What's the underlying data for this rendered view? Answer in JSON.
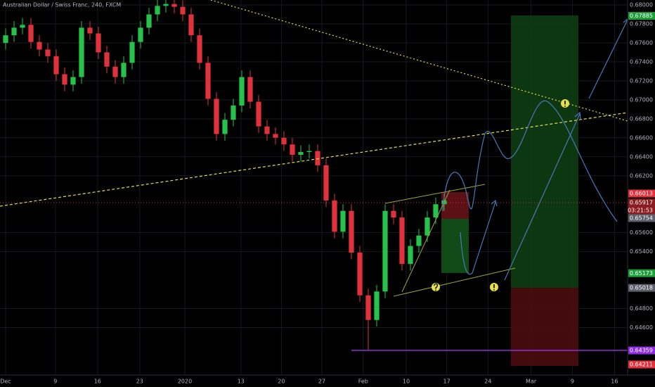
{
  "chart_data": {
    "type": "candlestick",
    "title": "Australian Dollar / Swiss Franc, 240, FXCM",
    "up_color": "#26c24a",
    "down_color": "#e0323c",
    "x": [
      0,
      1,
      2,
      3,
      4,
      5,
      6,
      7,
      8,
      9,
      10,
      11,
      12,
      13,
      14,
      15,
      16,
      17,
      18,
      19,
      20,
      21,
      22,
      23,
      24,
      25,
      26,
      27,
      28,
      29,
      30,
      31,
      32,
      33,
      34,
      35,
      36,
      37,
      38,
      39,
      40,
      41,
      42,
      43,
      44,
      45,
      46,
      47,
      48,
      49,
      50,
      51,
      52
    ],
    "open": [
      0.676,
      0.6768,
      0.6776,
      0.6779,
      0.6761,
      0.6753,
      0.6746,
      0.6727,
      0.6716,
      0.6724,
      0.6776,
      0.677,
      0.675,
      0.6735,
      0.6724,
      0.6739,
      0.6761,
      0.6776,
      0.679,
      0.6799,
      0.6801,
      0.6798,
      0.679,
      0.6768,
      0.6739,
      0.6701,
      0.6664,
      0.6679,
      0.6694,
      0.6724,
      0.6698,
      0.6672,
      0.6664,
      0.666,
      0.6653,
      0.6642,
      0.6645,
      0.6646,
      0.6631,
      0.6594,
      0.6561,
      0.6583,
      0.6539,
      0.6494,
      0.6468,
      0.6498,
      0.6583,
      0.6576,
      0.6527,
      0.6546,
      0.6557,
      0.6576,
      0.659
    ],
    "high": [
      0.6775,
      0.6783,
      0.6786,
      0.6786,
      0.6768,
      0.676,
      0.6753,
      0.6734,
      0.6731,
      0.6783,
      0.6783,
      0.6777,
      0.6757,
      0.6742,
      0.6746,
      0.6768,
      0.6783,
      0.6797,
      0.6806,
      0.6808,
      0.6808,
      0.6805,
      0.6797,
      0.6775,
      0.6746,
      0.6708,
      0.6686,
      0.6701,
      0.6731,
      0.6731,
      0.6705,
      0.6679,
      0.6671,
      0.6667,
      0.666,
      0.6652,
      0.6653,
      0.6653,
      0.6638,
      0.6601,
      0.659,
      0.659,
      0.6546,
      0.6501,
      0.6505,
      0.659,
      0.659,
      0.6583,
      0.6553,
      0.6564,
      0.6583,
      0.6597,
      0.6601
    ],
    "low": [
      0.6753,
      0.6761,
      0.6769,
      0.6754,
      0.6746,
      0.6739,
      0.672,
      0.6709,
      0.6709,
      0.6717,
      0.6763,
      0.6743,
      0.6728,
      0.6717,
      0.6717,
      0.6732,
      0.6754,
      0.6769,
      0.6783,
      0.6792,
      0.6791,
      0.6783,
      0.6761,
      0.6732,
      0.6694,
      0.6657,
      0.6657,
      0.6672,
      0.6687,
      0.6691,
      0.6665,
      0.6657,
      0.6653,
      0.6646,
      0.6635,
      0.6635,
      0.6638,
      0.6624,
      0.6587,
      0.6554,
      0.6554,
      0.6532,
      0.6487,
      0.6436,
      0.6461,
      0.6491,
      0.6569,
      0.652,
      0.652,
      0.6539,
      0.655,
      0.6569,
      0.6583
    ],
    "close": [
      0.6768,
      0.6776,
      0.6779,
      0.6761,
      0.6753,
      0.6746,
      0.6727,
      0.6716,
      0.6724,
      0.6776,
      0.677,
      0.675,
      0.6735,
      0.6724,
      0.6739,
      0.6761,
      0.6776,
      0.679,
      0.6799,
      0.6801,
      0.6798,
      0.679,
      0.6768,
      0.6739,
      0.6701,
      0.6664,
      0.6679,
      0.6694,
      0.6724,
      0.6698,
      0.6672,
      0.6664,
      0.666,
      0.6653,
      0.6642,
      0.6645,
      0.6646,
      0.6631,
      0.6594,
      0.6561,
      0.6583,
      0.6539,
      0.6494,
      0.6468,
      0.6498,
      0.6583,
      0.6576,
      0.6527,
      0.6546,
      0.6557,
      0.6576,
      0.659,
      0.6594
    ],
    "xlim": [
      -0.6667,
      73.75
    ],
    "xticks": [
      {
        "value": 0,
        "label": "Dec"
      },
      {
        "value": 5.9,
        "label": "9"
      },
      {
        "value": 10.9,
        "label": "16"
      },
      {
        "value": 15.9,
        "label": "23"
      },
      {
        "value": 21.25,
        "label": "2020"
      },
      {
        "value": 27.9,
        "label": "13"
      },
      {
        "value": 32.7,
        "label": "20"
      },
      {
        "value": 37.5,
        "label": "27"
      },
      {
        "value": 42.4,
        "label": "Feb"
      },
      {
        "value": 47.5,
        "label": "10"
      },
      {
        "value": 52.3,
        "label": "17"
      },
      {
        "value": 57.2,
        "label": "24"
      },
      {
        "value": 62.3,
        "label": "Mar"
      },
      {
        "value": 67.2,
        "label": "9"
      },
      {
        "value": 72.2,
        "label": "16"
      }
    ],
    "ylim": [
      0.6407,
      0.68052
    ],
    "yticks": [
      {
        "value": 0.68,
        "label": "0.68000"
      },
      {
        "value": 0.678,
        "label": "0.67800"
      },
      {
        "value": 0.676,
        "label": "0.67600"
      },
      {
        "value": 0.674,
        "label": "0.67400"
      },
      {
        "value": 0.672,
        "label": "0.67200"
      },
      {
        "value": 0.67,
        "label": "0.67000"
      },
      {
        "value": 0.668,
        "label": "0.66800"
      },
      {
        "value": 0.666,
        "label": "0.66600"
      },
      {
        "value": 0.664,
        "label": "0.66400"
      },
      {
        "value": 0.662,
        "label": "0.66200"
      },
      {
        "value": 0.656,
        "label": "0.65600"
      },
      {
        "value": 0.654,
        "label": "0.65400"
      },
      {
        "value": 0.648,
        "label": "0.64800"
      },
      {
        "value": 0.646,
        "label": "0.64600"
      }
    ],
    "grid": true,
    "price_tags": [
      {
        "value": 0.67885,
        "color": "#1e9e3a"
      },
      {
        "value": 0.66013,
        "color": "#e0323c"
      },
      {
        "value": 0.65917,
        "color": "#8a1c22",
        "countdown": "03:21:53"
      },
      {
        "value": 0.65754,
        "color": "#5d606b"
      },
      {
        "value": 0.65173,
        "color": "#1e9e3a"
      },
      {
        "value": 0.65018,
        "color": "#5d606b"
      },
      {
        "value": 0.64359,
        "color": "#8e2ce0"
      },
      {
        "value": 0.64211,
        "color": "#e0323c"
      }
    ]
  }
}
